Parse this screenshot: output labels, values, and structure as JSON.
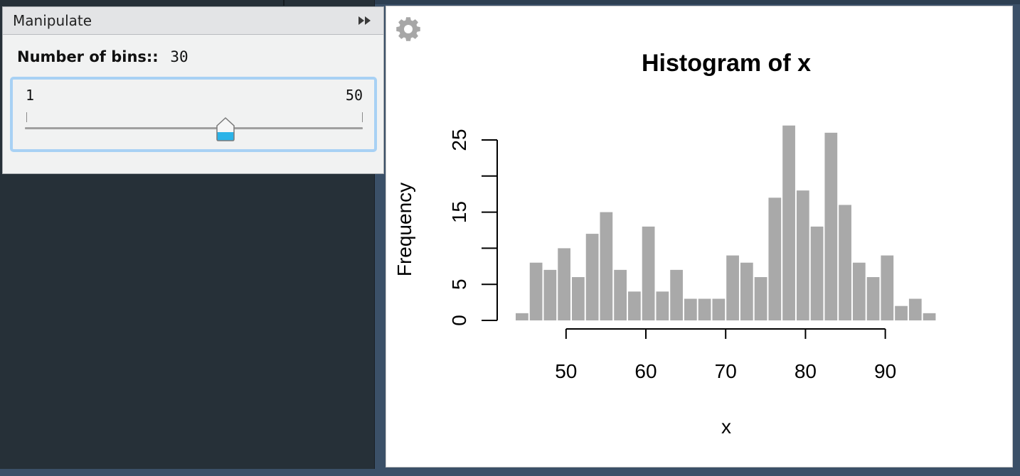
{
  "manipulate": {
    "title": "Manipulate",
    "collapse_icon": "double-chevron-right-icon",
    "control_label": "Number of bins::",
    "control_value": "30",
    "slider": {
      "min_label": "1",
      "max_label": "50",
      "min": 1,
      "max": 50,
      "value": 30,
      "accent": "#a8d1f4",
      "fill": "#2bb3e8"
    }
  },
  "plot_toolbar": {
    "gear_icon": "gear-icon"
  },
  "chart_data": {
    "type": "histogram",
    "title": "Histogram of x",
    "xlabel": "x",
    "ylabel": "Frequency",
    "bin_width": 1.76,
    "x_start": 43.6,
    "counts": [
      1,
      8,
      7,
      10,
      6,
      12,
      15,
      7,
      4,
      13,
      4,
      7,
      3,
      3,
      3,
      9,
      8,
      6,
      17,
      27,
      18,
      13,
      26,
      16,
      8,
      6,
      9,
      2,
      3,
      1
    ],
    "x_ticks": [
      50,
      60,
      70,
      80,
      90
    ],
    "y_ticks": [
      0,
      5,
      10,
      15,
      20,
      25
    ],
    "y_tick_labels": [
      "0",
      "5",
      "",
      "15",
      "",
      "25"
    ],
    "xlim": [
      43.6,
      96.4
    ],
    "ylim": [
      0,
      27
    ],
    "bar_color": "#a9a9a9"
  }
}
